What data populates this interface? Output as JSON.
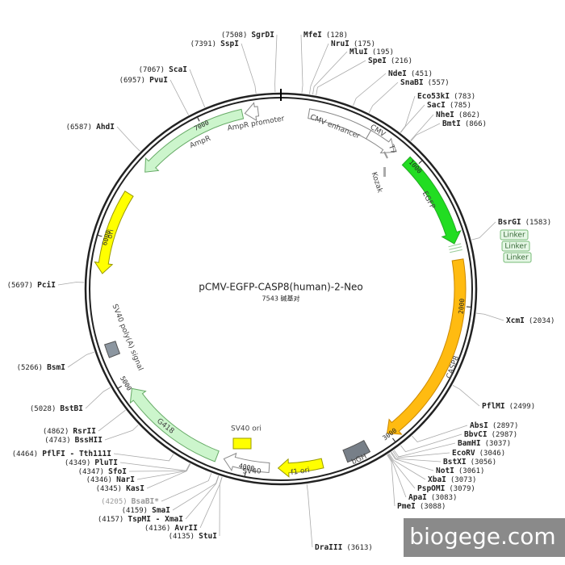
{
  "map": {
    "title": "pCMV-EGFP-CASP8(human)-2-Neo",
    "length": 7543,
    "length_label": "7543 碱基对",
    "ring_ticks": [
      1000,
      2000,
      3000,
      4000,
      5000,
      6000,
      7000
    ],
    "features": {
      "cmv_enhancer": "CMV enhancer",
      "cmv": "CMV",
      "t7": "T7",
      "kozak": "Kozak",
      "egfp": "EGFP",
      "linker": [
        "Linker",
        "Linker",
        "Linker"
      ],
      "casp8": "CASP8",
      "bgh": "bGH",
      "f1_ori": "f1 ori",
      "sv40_ori": "SV40 ori",
      "sv40": "SV40",
      "g418": "G418",
      "sv40_polya": "SV40 poly(A) signal",
      "ori": "ori",
      "ampr": "AmpR",
      "ampr_promoter": "AmpR promoter"
    },
    "sites": [
      {
        "name": "MfeI",
        "position": 128,
        "position_label": "(128)"
      },
      {
        "name": "NruI",
        "position": 175,
        "position_label": "(175)"
      },
      {
        "name": "MluI",
        "position": 195,
        "position_label": "(195)"
      },
      {
        "name": "SpeI",
        "position": 216,
        "position_label": "(216)"
      },
      {
        "name": "NdeI",
        "position": 451,
        "position_label": "(451)"
      },
      {
        "name": "SnaBI",
        "position": 557,
        "position_label": "(557)"
      },
      {
        "name": "Eco53kI",
        "position": 783,
        "position_label": "(783)"
      },
      {
        "name": "SacI",
        "position": 785,
        "position_label": "(785)"
      },
      {
        "name": "NheI",
        "position": 862,
        "position_label": "(862)"
      },
      {
        "name": "BmtI",
        "position": 866,
        "position_label": "(866)"
      },
      {
        "name": "BsrGI",
        "position": 1583,
        "position_label": "(1583)"
      },
      {
        "name": "XcmI",
        "position": 2034,
        "position_label": "(2034)"
      },
      {
        "name": "PflMI",
        "position": 2499,
        "position_label": "(2499)"
      },
      {
        "name": "AbsI",
        "position": 2897,
        "position_label": "(2897)"
      },
      {
        "name": "BbvCI",
        "position": 2987,
        "position_label": "(2987)"
      },
      {
        "name": "BamHI",
        "position": 3037,
        "position_label": "(3037)"
      },
      {
        "name": "EcoRV",
        "position": 3046,
        "position_label": "(3046)"
      },
      {
        "name": "BstXI",
        "position": 3056,
        "position_label": "(3056)"
      },
      {
        "name": "NotI",
        "position": 3061,
        "position_label": "(3061)"
      },
      {
        "name": "XbaI",
        "position": 3073,
        "position_label": "(3073)"
      },
      {
        "name": "PspOMI",
        "position": 3079,
        "position_label": "(3079)"
      },
      {
        "name": "ApaI",
        "position": 3083,
        "position_label": "(3083)"
      },
      {
        "name": "PmeI",
        "position": 3088,
        "position_label": "(3088)"
      },
      {
        "name": "DraIII",
        "position": 3613,
        "position_label": "(3613)"
      },
      {
        "name": "SgrDI",
        "position": 7508,
        "position_label": "(7508)"
      },
      {
        "name": "SspI",
        "position": 7391,
        "position_label": "(7391)"
      },
      {
        "name": "ScaI",
        "position": 7067,
        "position_label": "(7067)"
      },
      {
        "name": "PvuI",
        "position": 6957,
        "position_label": "(6957)"
      },
      {
        "name": "AhdI",
        "position": 6587,
        "position_label": "(6587)"
      },
      {
        "name": "PciI",
        "position": 5697,
        "position_label": "(5697)"
      },
      {
        "name": "BsmI",
        "position": 5266,
        "position_label": "(5266)"
      },
      {
        "name": "BstBI",
        "position": 5028,
        "position_label": "(5028)"
      },
      {
        "name": "RsrII",
        "position": 4862,
        "position_label": "(4862)"
      },
      {
        "name": "BssHII",
        "position": 4743,
        "position_label": "(4743)"
      },
      {
        "name": "PflFI - Tth111I",
        "position": 4464,
        "position_label": "(4464)"
      },
      {
        "name": "PluTI",
        "position": 4349,
        "position_label": "(4349)"
      },
      {
        "name": "SfoI",
        "position": 4347,
        "position_label": "(4347)"
      },
      {
        "name": "NarI",
        "position": 4346,
        "position_label": "(4346)"
      },
      {
        "name": "KasI",
        "position": 4345,
        "position_label": "(4345)"
      },
      {
        "name": "BsaBI*",
        "position": 4205,
        "position_label": "(4205)"
      },
      {
        "name": "SmaI",
        "position": 4159,
        "position_label": "(4159)"
      },
      {
        "name": "TspMI - XmaI",
        "position": 4157,
        "position_label": "(4157)"
      },
      {
        "name": "AvrII",
        "position": 4136,
        "position_label": "(4136)"
      },
      {
        "name": "StuI",
        "position": 4135,
        "position_label": "(4135)"
      }
    ],
    "watermark": "biogege.com"
  }
}
